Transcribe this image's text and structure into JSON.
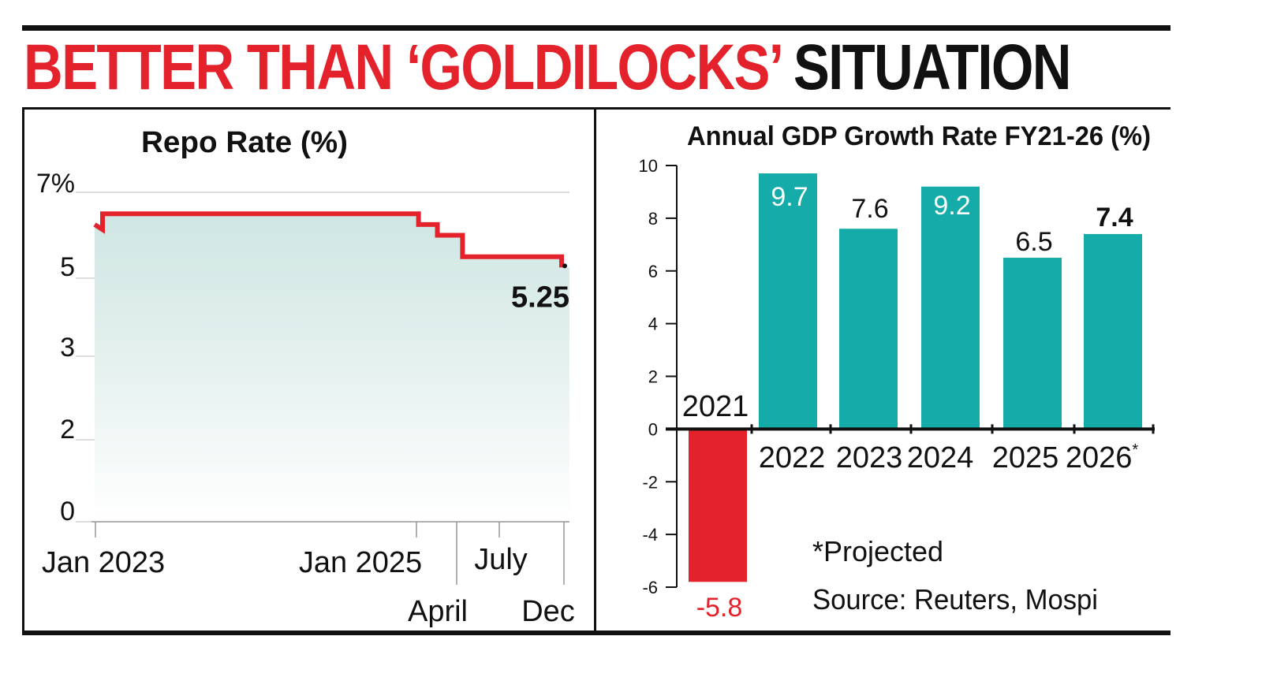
{
  "headline": {
    "part_red": "BETTER THAN ‘GOLDILOCKS’",
    "part_black": "SITUATION"
  },
  "colors": {
    "red": "#e3222b",
    "teal": "#14aba9",
    "black": "#111111",
    "fill_top": "#cfe6e2"
  },
  "chart_data": [
    {
      "type": "line",
      "title": "Repo Rate (%)",
      "y_tick_labels": [
        "7%",
        "5",
        "3",
        "2",
        "0"
      ],
      "x_labels": [
        "Jan 2023",
        "Jan 2025",
        "April",
        "July",
        "Dec"
      ],
      "x": [
        2023.0,
        2023.05,
        2025.05,
        2025.17,
        2025.33,
        2025.5,
        2025.96
      ],
      "values": [
        6.5,
        6.5,
        6.25,
        6.0,
        5.5,
        5.5,
        5.25
      ],
      "last_label": "5.25",
      "fill": "area"
    },
    {
      "type": "bar",
      "title": "Annual GDP Growth Rate FY21-26 (%)",
      "categories": [
        "2021",
        "2022",
        "2023",
        "2024",
        "2025",
        "2026"
      ],
      "category_suffix": [
        "",
        "",
        "",
        "",
        "",
        "*"
      ],
      "values": [
        -5.8,
        9.7,
        7.6,
        9.2,
        6.5,
        7.4
      ],
      "value_labels": [
        "-5.8",
        "9.7",
        "7.6",
        "9.2",
        "6.5",
        "7.4"
      ],
      "ylim": [
        -6,
        10
      ],
      "y_ticks": [
        "10",
        "8",
        "6",
        "4",
        "2",
        "0",
        "-2",
        "-4",
        "-6"
      ],
      "note": "*Projected",
      "source": "Source: Reuters, Mospi"
    }
  ]
}
